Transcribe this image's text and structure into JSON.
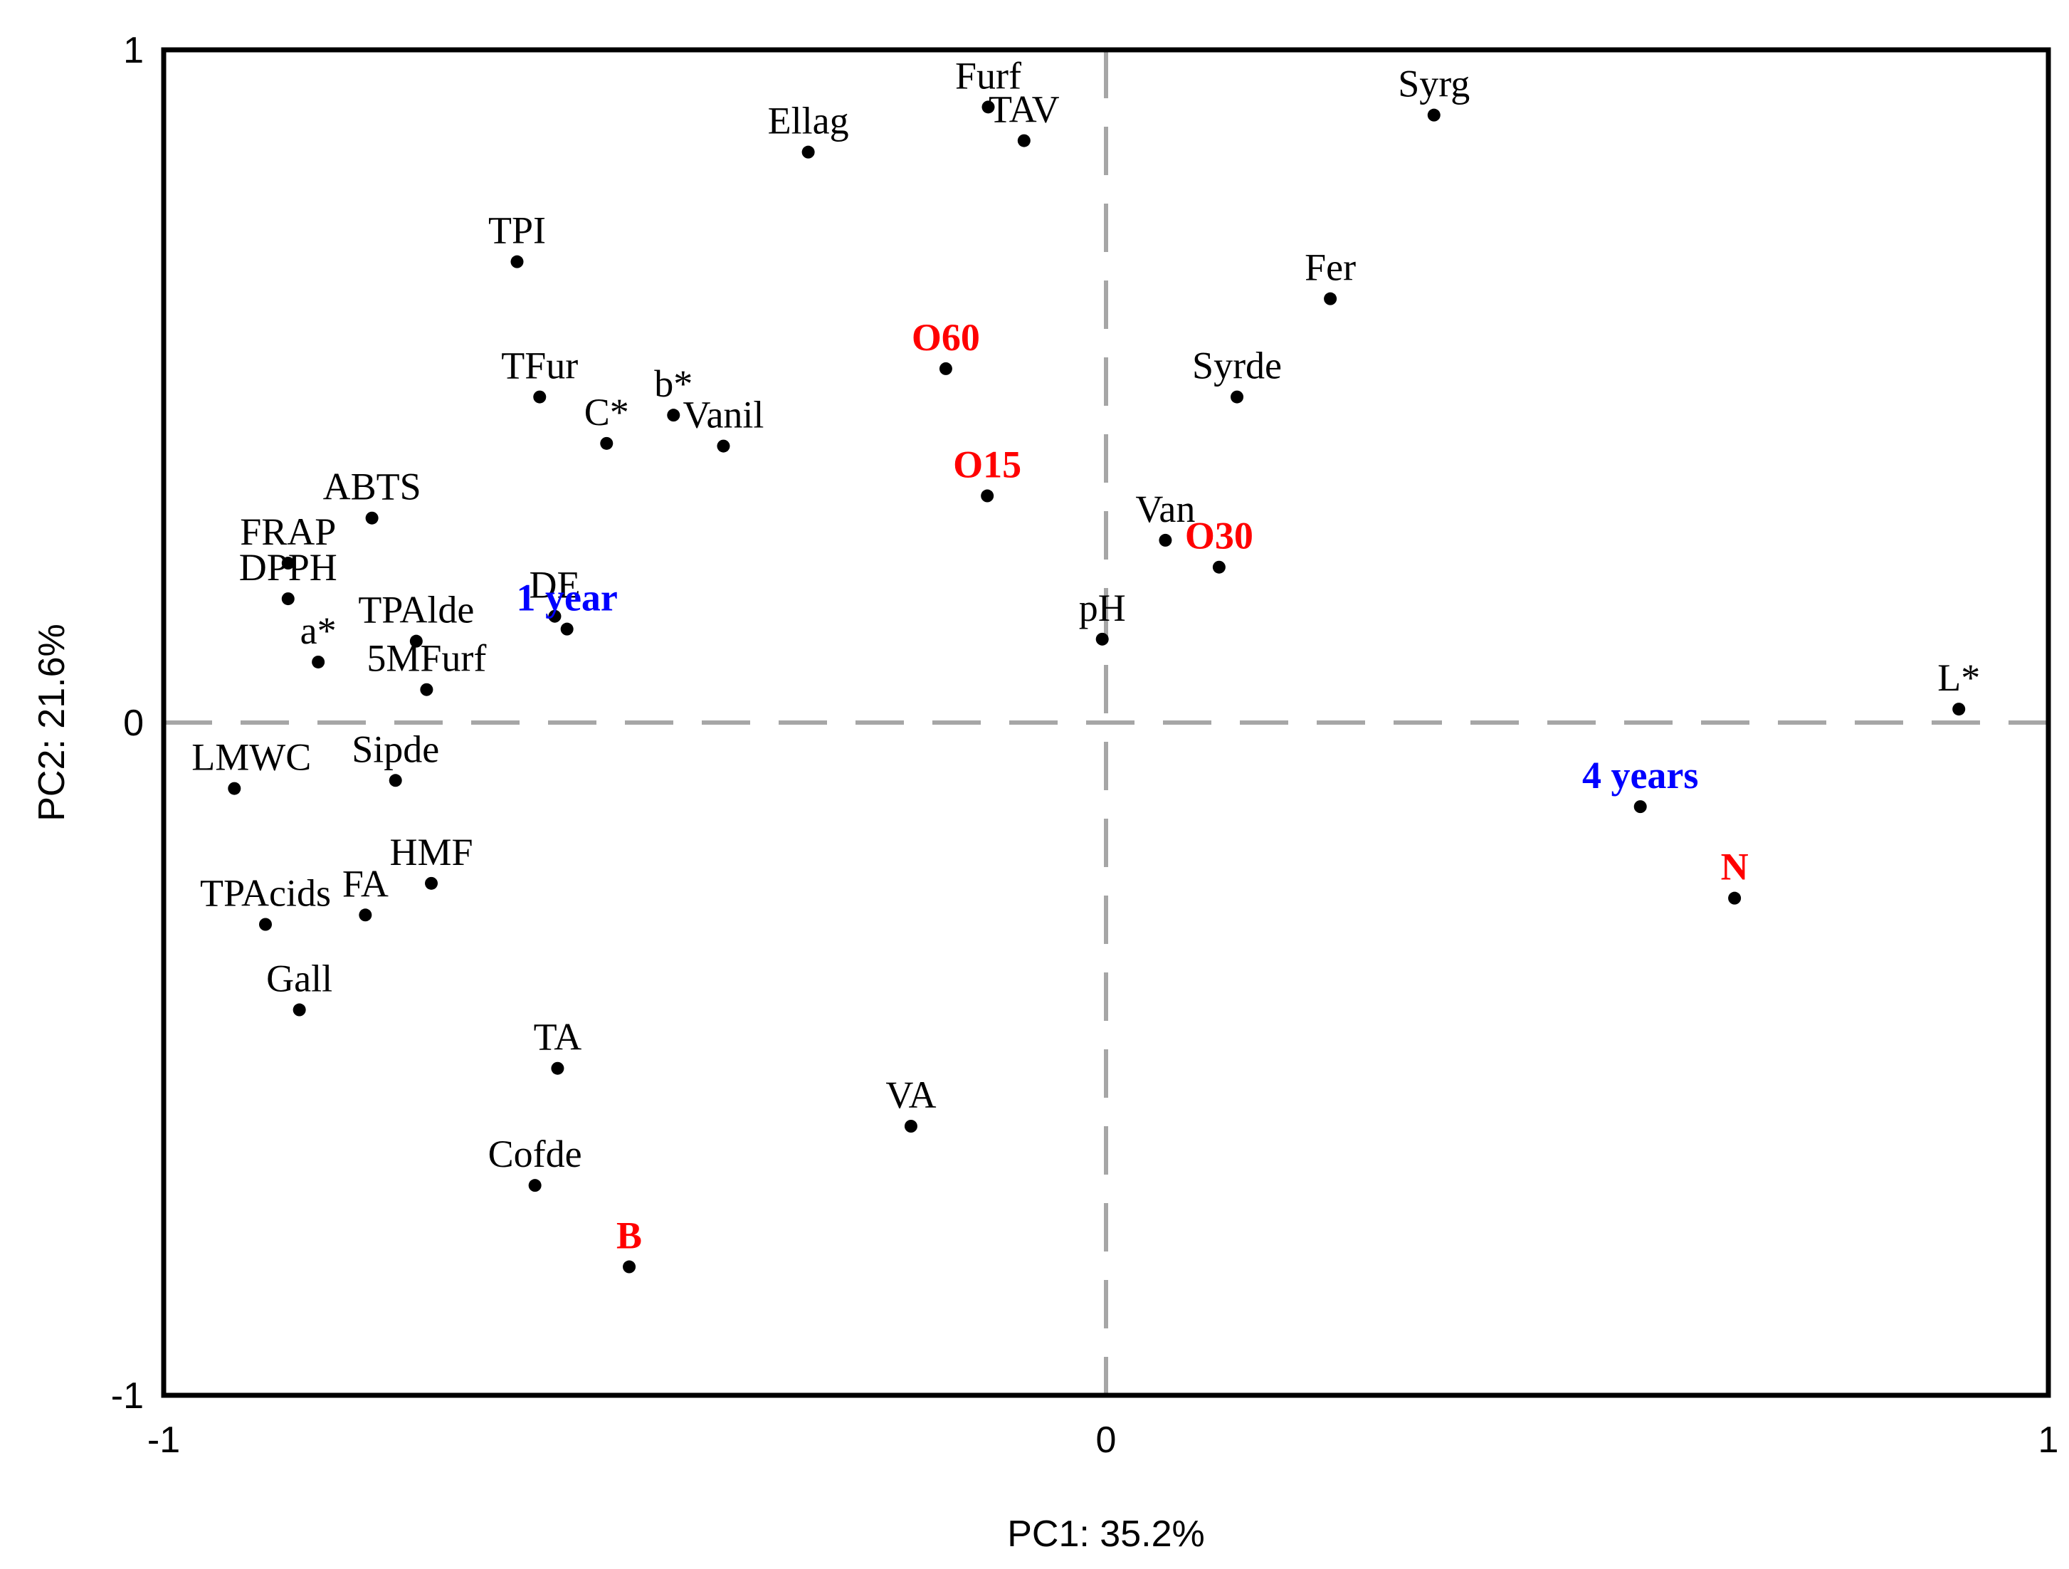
{
  "chart_data": {
    "type": "scatter",
    "title": "",
    "xlabel": "PC1: 35.2%",
    "ylabel": "PC2: 21.6%",
    "xlim": [
      -1,
      1
    ],
    "ylim": [
      -1,
      1
    ],
    "xticks": [
      "-1",
      "0",
      "1"
    ],
    "yticks": [
      "-1",
      "0",
      "1"
    ],
    "grid": false,
    "reference_lines": "dashed lines at x=0 and y=0",
    "colors": {
      "variable": "#000000",
      "treatment": "#ff0000",
      "time": "#0000ff",
      "refline": "#a6a6a6"
    },
    "points": [
      {
        "label": "Furf",
        "x": -0.125,
        "y": 0.915,
        "group": "variable"
      },
      {
        "label": "TAV",
        "x": -0.087,
        "y": 0.865,
        "group": "variable"
      },
      {
        "label": "Ellag",
        "x": -0.316,
        "y": 0.848,
        "group": "variable"
      },
      {
        "label": "Syrg",
        "x": 0.348,
        "y": 0.903,
        "group": "variable"
      },
      {
        "label": "TPI",
        "x": -0.625,
        "y": 0.685,
        "group": "variable"
      },
      {
        "label": "Fer",
        "x": 0.238,
        "y": 0.63,
        "group": "variable"
      },
      {
        "label": "TFur",
        "x": -0.601,
        "y": 0.484,
        "group": "variable"
      },
      {
        "label": "b*",
        "x": -0.459,
        "y": 0.457,
        "group": "variable"
      },
      {
        "label": "C*",
        "x": -0.53,
        "y": 0.415,
        "group": "variable"
      },
      {
        "label": "Vanil",
        "x": -0.406,
        "y": 0.411,
        "group": "variable"
      },
      {
        "label": "Syrde",
        "x": 0.139,
        "y": 0.484,
        "group": "variable"
      },
      {
        "label": "ABTS",
        "x": -0.779,
        "y": 0.304,
        "group": "variable"
      },
      {
        "label": "FRAP",
        "x": -0.868,
        "y": 0.237,
        "group": "variable"
      },
      {
        "label": "DPPH",
        "x": -0.868,
        "y": 0.184,
        "group": "variable"
      },
      {
        "label": "Van",
        "x": 0.063,
        "y": 0.271,
        "group": "variable"
      },
      {
        "label": "DE",
        "x": -0.585,
        "y": 0.158,
        "group": "variable"
      },
      {
        "label": "TPAlde",
        "x": -0.732,
        "y": 0.121,
        "group": "variable"
      },
      {
        "label": "a*",
        "x": -0.836,
        "y": 0.09,
        "group": "variable"
      },
      {
        "label": "5MFurf",
        "x": -0.721,
        "y": 0.049,
        "group": "variable"
      },
      {
        "label": "pH",
        "x": -0.004,
        "y": 0.124,
        "group": "variable"
      },
      {
        "label": "L*",
        "x": 0.905,
        "y": 0.02,
        "group": "variable"
      },
      {
        "label": "LMWC",
        "x": -0.925,
        "y": -0.098,
        "group": "variable"
      },
      {
        "label": "Sipde",
        "x": -0.754,
        "y": -0.086,
        "group": "variable"
      },
      {
        "label": "HMF",
        "x": -0.716,
        "y": -0.239,
        "group": "variable"
      },
      {
        "label": "TPAcids",
        "x": -0.892,
        "y": -0.3,
        "group": "variable"
      },
      {
        "label": "FA",
        "x": -0.786,
        "y": -0.286,
        "group": "variable"
      },
      {
        "label": "Gall",
        "x": -0.856,
        "y": -0.427,
        "group": "variable"
      },
      {
        "label": "TA",
        "x": -0.582,
        "y": -0.514,
        "group": "variable"
      },
      {
        "label": "VA",
        "x": -0.207,
        "y": -0.6,
        "group": "variable"
      },
      {
        "label": "Cofde",
        "x": -0.606,
        "y": -0.688,
        "group": "variable"
      },
      {
        "label": "O60",
        "x": -0.17,
        "y": 0.526,
        "group": "treatment"
      },
      {
        "label": "O15",
        "x": -0.126,
        "y": 0.337,
        "group": "treatment"
      },
      {
        "label": "O30",
        "x": 0.12,
        "y": 0.231,
        "group": "treatment"
      },
      {
        "label": "B",
        "x": -0.506,
        "y": -0.809,
        "group": "treatment"
      },
      {
        "label": "N",
        "x": 0.667,
        "y": -0.261,
        "group": "treatment"
      },
      {
        "label": "1 year",
        "x": -0.572,
        "y": 0.139,
        "group": "time"
      },
      {
        "label": "4 years",
        "x": 0.567,
        "y": -0.125,
        "group": "time"
      }
    ]
  }
}
